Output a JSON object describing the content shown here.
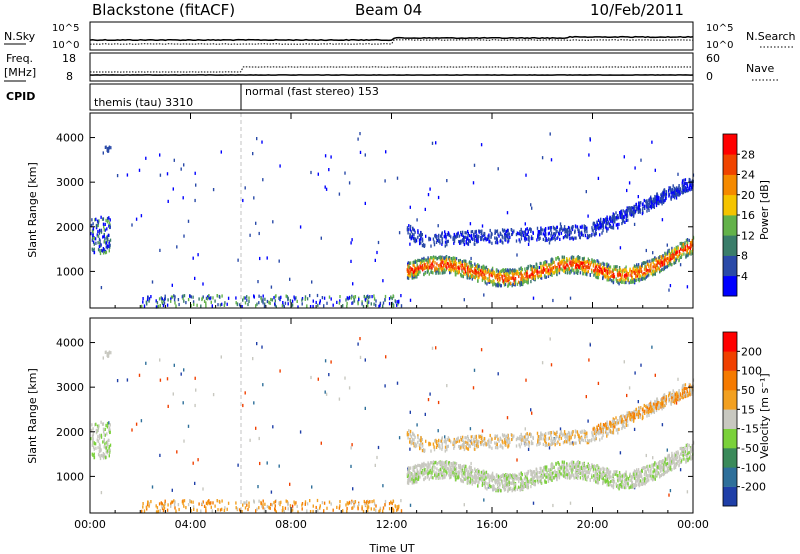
{
  "header": {
    "title": "Blackstone (fitACF)",
    "beam": "Beam 04",
    "date": "10/Feb/2011"
  },
  "strips": {
    "nsky_label": "N.Sky",
    "nsky_ticks": [
      "10^5",
      "10^0"
    ],
    "nsearch_label": "N.Search",
    "nsearch_ticks": [
      "10^5",
      "10^0"
    ],
    "freq_label_1": "Freq.",
    "freq_label_2": "[MHz]",
    "freq_ticks": [
      "18",
      "8"
    ],
    "nave_label": "Nave",
    "nave_ticks": [
      "60",
      "0"
    ],
    "cpid_label": "CPID",
    "cpid_segments": [
      {
        "label": "themis (tau) 3310",
        "start_hour": 0
      },
      {
        "label": "normal (fast stereo) 153",
        "start_hour": 6
      }
    ]
  },
  "chart_data": [
    {
      "type": "heatmap",
      "name": "power-panel",
      "ylabel": "Slant Range [km]",
      "xlabel": "",
      "x_ticks": [
        "00:00",
        "04:00",
        "08:00",
        "12:00",
        "16:00",
        "20:00",
        "00:00"
      ],
      "xlim_hours": [
        0,
        24
      ],
      "y_ticks": [
        1000,
        2000,
        3000,
        4000
      ],
      "ylim": [
        180,
        4550
      ],
      "colorbar": {
        "label": "Power [dB]",
        "ticks": [
          "4",
          "8",
          "12",
          "16",
          "20",
          "24",
          "28"
        ],
        "colors": [
          "#0000ff",
          "#2a4aa8",
          "#3a7d6a",
          "#63b24a",
          "#f5c400",
          "#f58a00",
          "#f04400",
          "#ff0000"
        ]
      }
    },
    {
      "type": "heatmap",
      "name": "velocity-panel",
      "ylabel": "Slant Range [km]",
      "xlabel": "Time UT",
      "x_ticks": [
        "00:00",
        "04:00",
        "08:00",
        "12:00",
        "16:00",
        "20:00",
        "00:00"
      ],
      "xlim_hours": [
        0,
        24
      ],
      "y_ticks": [
        1000,
        2000,
        3000,
        4000
      ],
      "ylim": [
        180,
        4550
      ],
      "colorbar": {
        "label": "Velocity [m s⁻¹]",
        "ticks": [
          "200",
          "100",
          "50",
          "15",
          "-15",
          "-50",
          "-100",
          "-200"
        ],
        "colors": [
          "#1f3fa8",
          "#2e6f9a",
          "#3a8a5a",
          "#7ad13a",
          "#c8c8c0",
          "#f2a020",
          "#f57a00",
          "#f04000",
          "#ff0000"
        ]
      }
    }
  ]
}
